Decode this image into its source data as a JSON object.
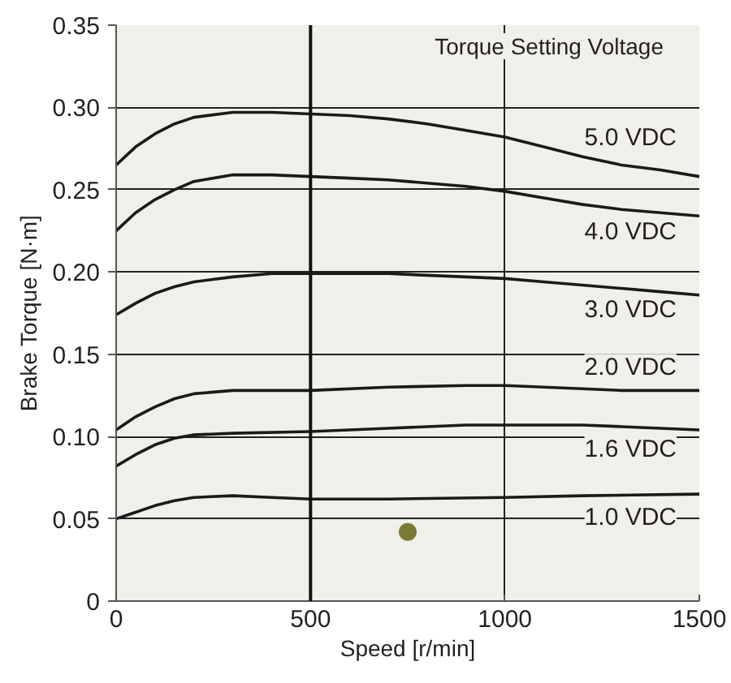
{
  "chart_data": {
    "type": "line",
    "xlabel": "Speed [r/min]",
    "ylabel": "Brake Torque [N·m]",
    "legend_title": "Torque Setting Voltage",
    "xlim": [
      0,
      1500
    ],
    "ylim": [
      0,
      0.35
    ],
    "xticks": [
      0,
      500,
      1000,
      1500
    ],
    "yticks": [
      0,
      0.05,
      {
        "value": 0.1,
        "label": "0.10"
      },
      0.15,
      {
        "value": 0.2,
        "label": "0.20"
      },
      0.25,
      {
        "value": 0.3,
        "label": "0.30"
      },
      0.35
    ],
    "grid": true,
    "line_style": "solid",
    "ref_lines": [
      {
        "axis": "x",
        "value": 500
      }
    ],
    "series": [
      {
        "name": "5.0 VDC",
        "color": "#1a1a1a",
        "x": [
          0,
          50,
          100,
          150,
          200,
          300,
          400,
          500,
          600,
          700,
          800,
          900,
          1000,
          1100,
          1200,
          1300,
          1400,
          1500
        ],
        "values": [
          0.265,
          0.276,
          0.284,
          0.29,
          0.294,
          0.297,
          0.297,
          0.296,
          0.295,
          0.293,
          0.29,
          0.286,
          0.282,
          0.276,
          0.27,
          0.265,
          0.262,
          0.258
        ]
      },
      {
        "name": "4.0 VDC",
        "color": "#1a1a1a",
        "x": [
          0,
          50,
          100,
          150,
          200,
          300,
          400,
          500,
          600,
          700,
          800,
          900,
          1000,
          1100,
          1200,
          1300,
          1400,
          1500
        ],
        "values": [
          0.225,
          0.236,
          0.244,
          0.25,
          0.255,
          0.259,
          0.259,
          0.258,
          0.257,
          0.256,
          0.254,
          0.252,
          0.249,
          0.245,
          0.241,
          0.238,
          0.236,
          0.234
        ]
      },
      {
        "name": "3.0 VDC",
        "color": "#1a1a1a",
        "x": [
          0,
          50,
          100,
          150,
          200,
          300,
          400,
          500,
          600,
          700,
          800,
          900,
          1000,
          1100,
          1200,
          1300,
          1400,
          1500
        ],
        "values": [
          0.174,
          0.181,
          0.187,
          0.191,
          0.194,
          0.197,
          0.199,
          0.199,
          0.199,
          0.199,
          0.198,
          0.197,
          0.196,
          0.194,
          0.192,
          0.19,
          0.188,
          0.186
        ]
      },
      {
        "name": "2.0 VDC",
        "color": "#1a1a1a",
        "x": [
          0,
          50,
          100,
          150,
          200,
          300,
          400,
          500,
          700,
          900,
          1000,
          1100,
          1200,
          1300,
          1500
        ],
        "values": [
          0.104,
          0.112,
          0.118,
          0.123,
          0.126,
          0.128,
          0.128,
          0.128,
          0.13,
          0.131,
          0.131,
          0.13,
          0.129,
          0.128,
          0.128
        ]
      },
      {
        "name": "1.6 VDC",
        "color": "#1a1a1a",
        "x": [
          0,
          50,
          100,
          150,
          200,
          300,
          500,
          700,
          900,
          1000,
          1100,
          1200,
          1300,
          1400,
          1500
        ],
        "values": [
          0.082,
          0.089,
          0.095,
          0.099,
          0.101,
          0.102,
          0.103,
          0.105,
          0.107,
          0.107,
          0.107,
          0.107,
          0.106,
          0.105,
          0.104
        ]
      },
      {
        "name": "1.0 VDC",
        "color": "#1a1a1a",
        "x": [
          0,
          50,
          100,
          150,
          200,
          300,
          400,
          500,
          700,
          1000,
          1200,
          1500
        ],
        "values": [
          0.05,
          0.054,
          0.058,
          0.061,
          0.063,
          0.064,
          0.063,
          0.062,
          0.062,
          0.063,
          0.064,
          0.065
        ]
      },
      {
        "type": "scatter",
        "color": "#7b7a35",
        "x": [
          750
        ],
        "values": [
          0.042
        ]
      }
    ]
  }
}
